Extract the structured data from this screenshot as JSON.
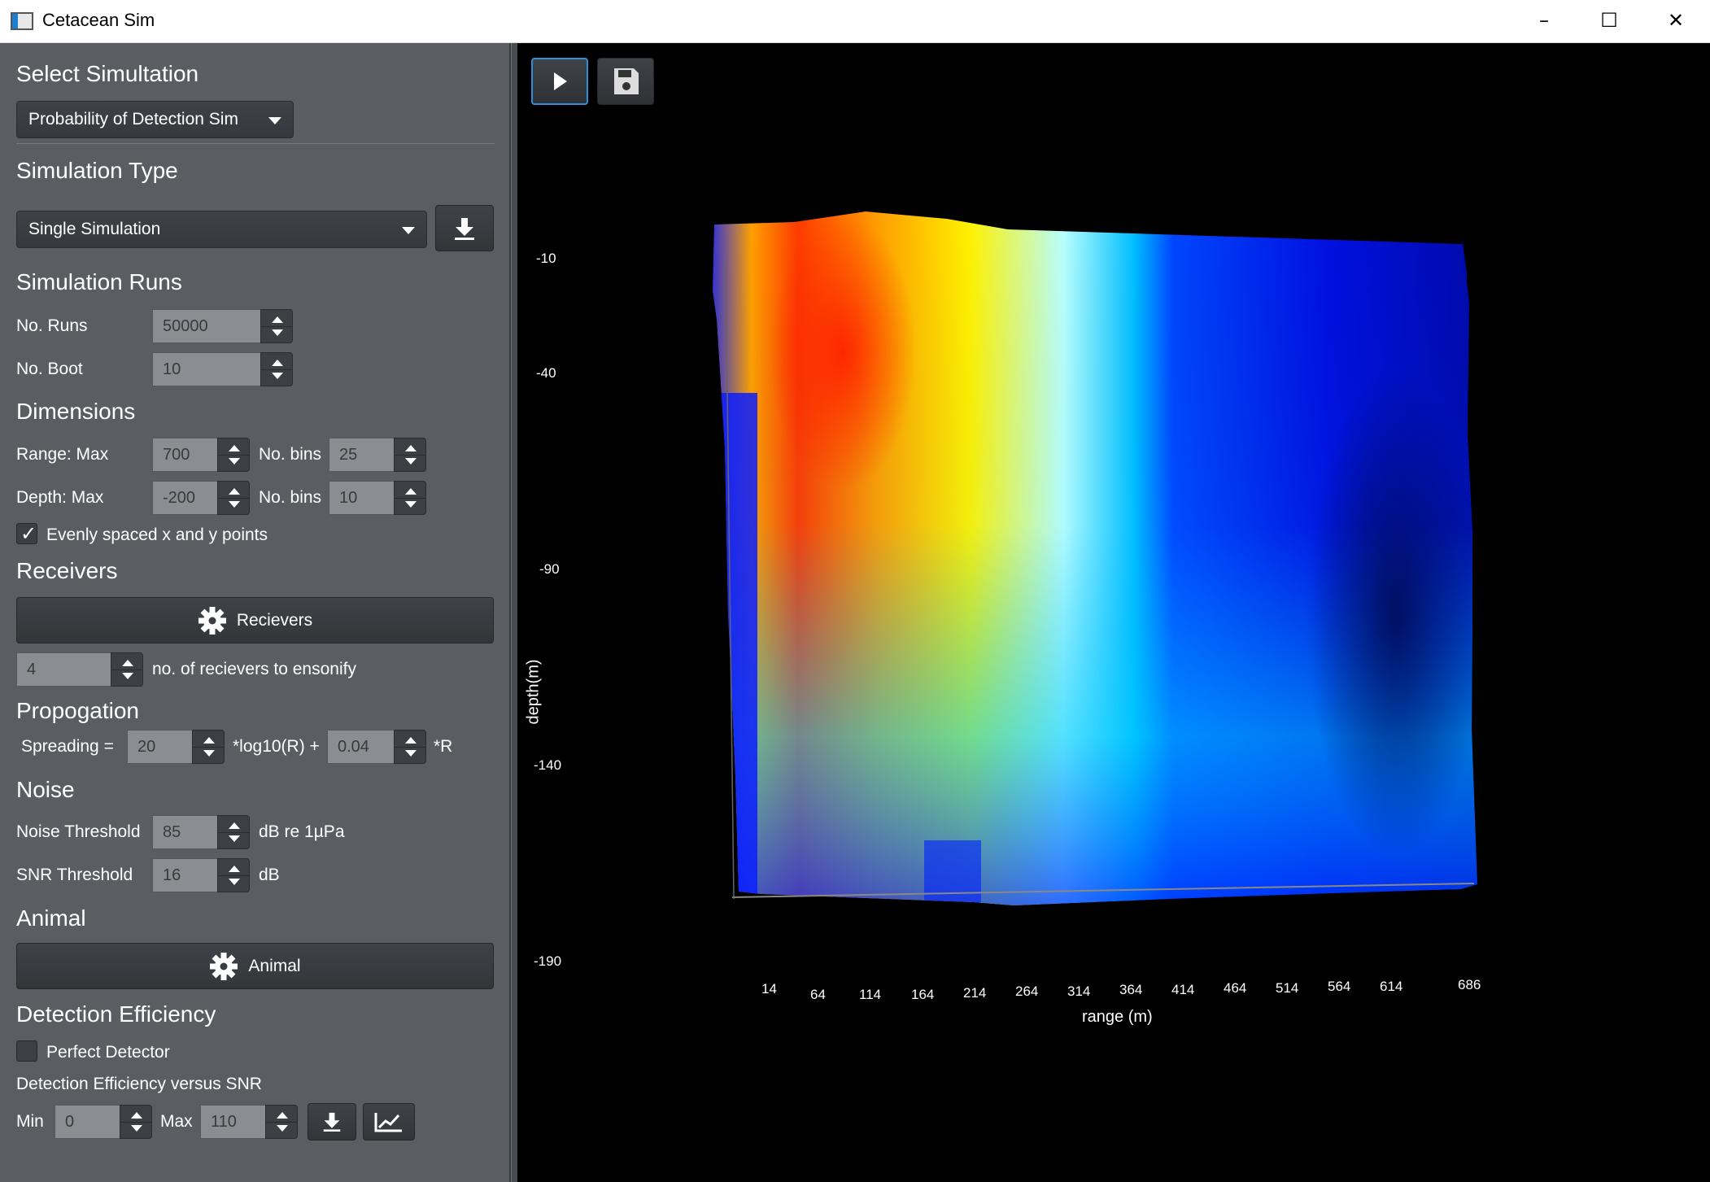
{
  "window": {
    "title": "Cetacean Sim"
  },
  "select_simulation": {
    "heading": "Select Simultation",
    "value": "Probability of Detection Sim"
  },
  "simulation_type": {
    "heading": "Simulation Type",
    "value": "Single Simulation"
  },
  "simulation_runs": {
    "heading": "Simulation Runs",
    "runs_label": "No. Runs",
    "runs_value": "50000",
    "boot_label": "No. Boot",
    "boot_value": "10"
  },
  "dimensions": {
    "heading": "Dimensions",
    "range_label": "Range: Max",
    "range_value": "700",
    "range_bins_label": "No. bins",
    "range_bins_value": "25",
    "depth_label": "Depth: Max",
    "depth_value": "-200",
    "depth_bins_label": "No. bins",
    "depth_bins_value": "10",
    "evenly_label": "Evenly spaced x and y points",
    "evenly_checked": true
  },
  "receivers": {
    "heading": "Receivers",
    "button_label": "Recievers",
    "count_value": "4",
    "count_label": "no. of recievers to ensonify"
  },
  "propagation": {
    "heading": "Propogation",
    "spreading_label": "Spreading =",
    "spreading_value": "20",
    "log_label": "*log10(R) +",
    "absorption_value": "0.04",
    "r_label": "*R"
  },
  "noise": {
    "heading": "Noise",
    "noise_label": "Noise Threshold",
    "noise_value": "85",
    "noise_unit": "dB re 1µPa",
    "snr_label": "SNR Threshold",
    "snr_value": "16",
    "snr_unit": "dB"
  },
  "animal": {
    "heading": "Animal",
    "button_label": "Animal"
  },
  "detection": {
    "heading": "Detection Efficiency",
    "perfect_label": "Perfect Detector",
    "perfect_checked": false,
    "vs_label": "Detection Efficiency versus SNR",
    "min_label": "Min",
    "min_value": "0",
    "max_label": "Max",
    "max_value": "110"
  },
  "toolbar": {
    "play_icon": "play-icon",
    "save_icon": "save-icon"
  },
  "plot": {
    "xlabel": "range (m)",
    "ylabel": "depth(m)",
    "x_ticks": [
      "14",
      "64",
      "114",
      "164",
      "214",
      "264",
      "314",
      "364",
      "414",
      "464",
      "514",
      "564",
      "614",
      "686"
    ],
    "y_ticks": [
      "-10",
      "-40",
      "-90",
      "-140",
      "-190"
    ],
    "colormap": "jet"
  }
}
